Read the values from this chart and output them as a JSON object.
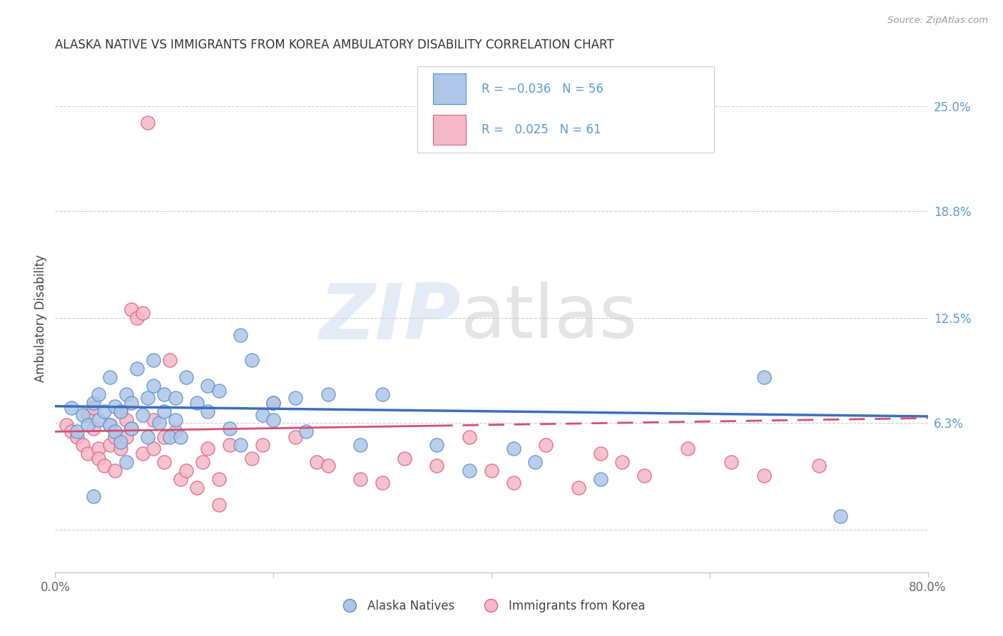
{
  "title": "ALASKA NATIVE VS IMMIGRANTS FROM KOREA AMBULATORY DISABILITY CORRELATION CHART",
  "source": "Source: ZipAtlas.com",
  "ylabel": "Ambulatory Disability",
  "yticks": [
    0.0,
    0.063,
    0.125,
    0.188,
    0.25
  ],
  "ytick_labels": [
    "",
    "6.3%",
    "12.5%",
    "18.8%",
    "25.0%"
  ],
  "xlim": [
    0.0,
    0.8
  ],
  "ylim": [
    -0.025,
    0.275
  ],
  "alaska_color": "#aec6e8",
  "alaska_edge_color": "#5b8fc9",
  "korea_color": "#f4b8c8",
  "korea_edge_color": "#e06080",
  "alaska_line_color": "#3a6fbd",
  "korea_line_color": "#d45070",
  "alaska_x": [
    0.015,
    0.02,
    0.025,
    0.03,
    0.035,
    0.035,
    0.04,
    0.04,
    0.045,
    0.05,
    0.05,
    0.055,
    0.055,
    0.06,
    0.06,
    0.065,
    0.065,
    0.07,
    0.07,
    0.075,
    0.08,
    0.085,
    0.085,
    0.09,
    0.09,
    0.095,
    0.1,
    0.1,
    0.105,
    0.11,
    0.11,
    0.115,
    0.12,
    0.13,
    0.14,
    0.14,
    0.15,
    0.16,
    0.17,
    0.17,
    0.18,
    0.19,
    0.2,
    0.2,
    0.22,
    0.23,
    0.25,
    0.28,
    0.3,
    0.35,
    0.38,
    0.42,
    0.44,
    0.5,
    0.65,
    0.72
  ],
  "alaska_y": [
    0.072,
    0.058,
    0.068,
    0.062,
    0.075,
    0.02,
    0.065,
    0.08,
    0.07,
    0.062,
    0.09,
    0.073,
    0.058,
    0.07,
    0.052,
    0.04,
    0.08,
    0.075,
    0.06,
    0.095,
    0.068,
    0.078,
    0.055,
    0.1,
    0.085,
    0.063,
    0.07,
    0.08,
    0.055,
    0.078,
    0.065,
    0.055,
    0.09,
    0.075,
    0.085,
    0.07,
    0.082,
    0.06,
    0.115,
    0.05,
    0.1,
    0.068,
    0.065,
    0.075,
    0.078,
    0.058,
    0.08,
    0.05,
    0.08,
    0.05,
    0.035,
    0.048,
    0.04,
    0.03,
    0.09,
    0.008
  ],
  "korea_x": [
    0.01,
    0.015,
    0.02,
    0.025,
    0.03,
    0.03,
    0.035,
    0.035,
    0.04,
    0.04,
    0.045,
    0.05,
    0.05,
    0.055,
    0.055,
    0.06,
    0.06,
    0.065,
    0.065,
    0.07,
    0.07,
    0.075,
    0.08,
    0.08,
    0.085,
    0.09,
    0.09,
    0.1,
    0.1,
    0.105,
    0.11,
    0.115,
    0.12,
    0.13,
    0.135,
    0.14,
    0.15,
    0.15,
    0.16,
    0.18,
    0.19,
    0.2,
    0.22,
    0.24,
    0.25,
    0.28,
    0.3,
    0.32,
    0.35,
    0.38,
    0.4,
    0.42,
    0.45,
    0.48,
    0.5,
    0.52,
    0.54,
    0.58,
    0.62,
    0.65,
    0.7
  ],
  "korea_y": [
    0.062,
    0.058,
    0.055,
    0.05,
    0.068,
    0.045,
    0.06,
    0.072,
    0.048,
    0.042,
    0.038,
    0.05,
    0.062,
    0.055,
    0.035,
    0.07,
    0.048,
    0.055,
    0.065,
    0.06,
    0.13,
    0.125,
    0.128,
    0.045,
    0.24,
    0.065,
    0.048,
    0.04,
    0.055,
    0.1,
    0.058,
    0.03,
    0.035,
    0.025,
    0.04,
    0.048,
    0.03,
    0.015,
    0.05,
    0.042,
    0.05,
    0.075,
    0.055,
    0.04,
    0.038,
    0.03,
    0.028,
    0.042,
    0.038,
    0.055,
    0.035,
    0.028,
    0.05,
    0.025,
    0.045,
    0.04,
    0.032,
    0.048,
    0.04,
    0.032,
    0.038
  ]
}
